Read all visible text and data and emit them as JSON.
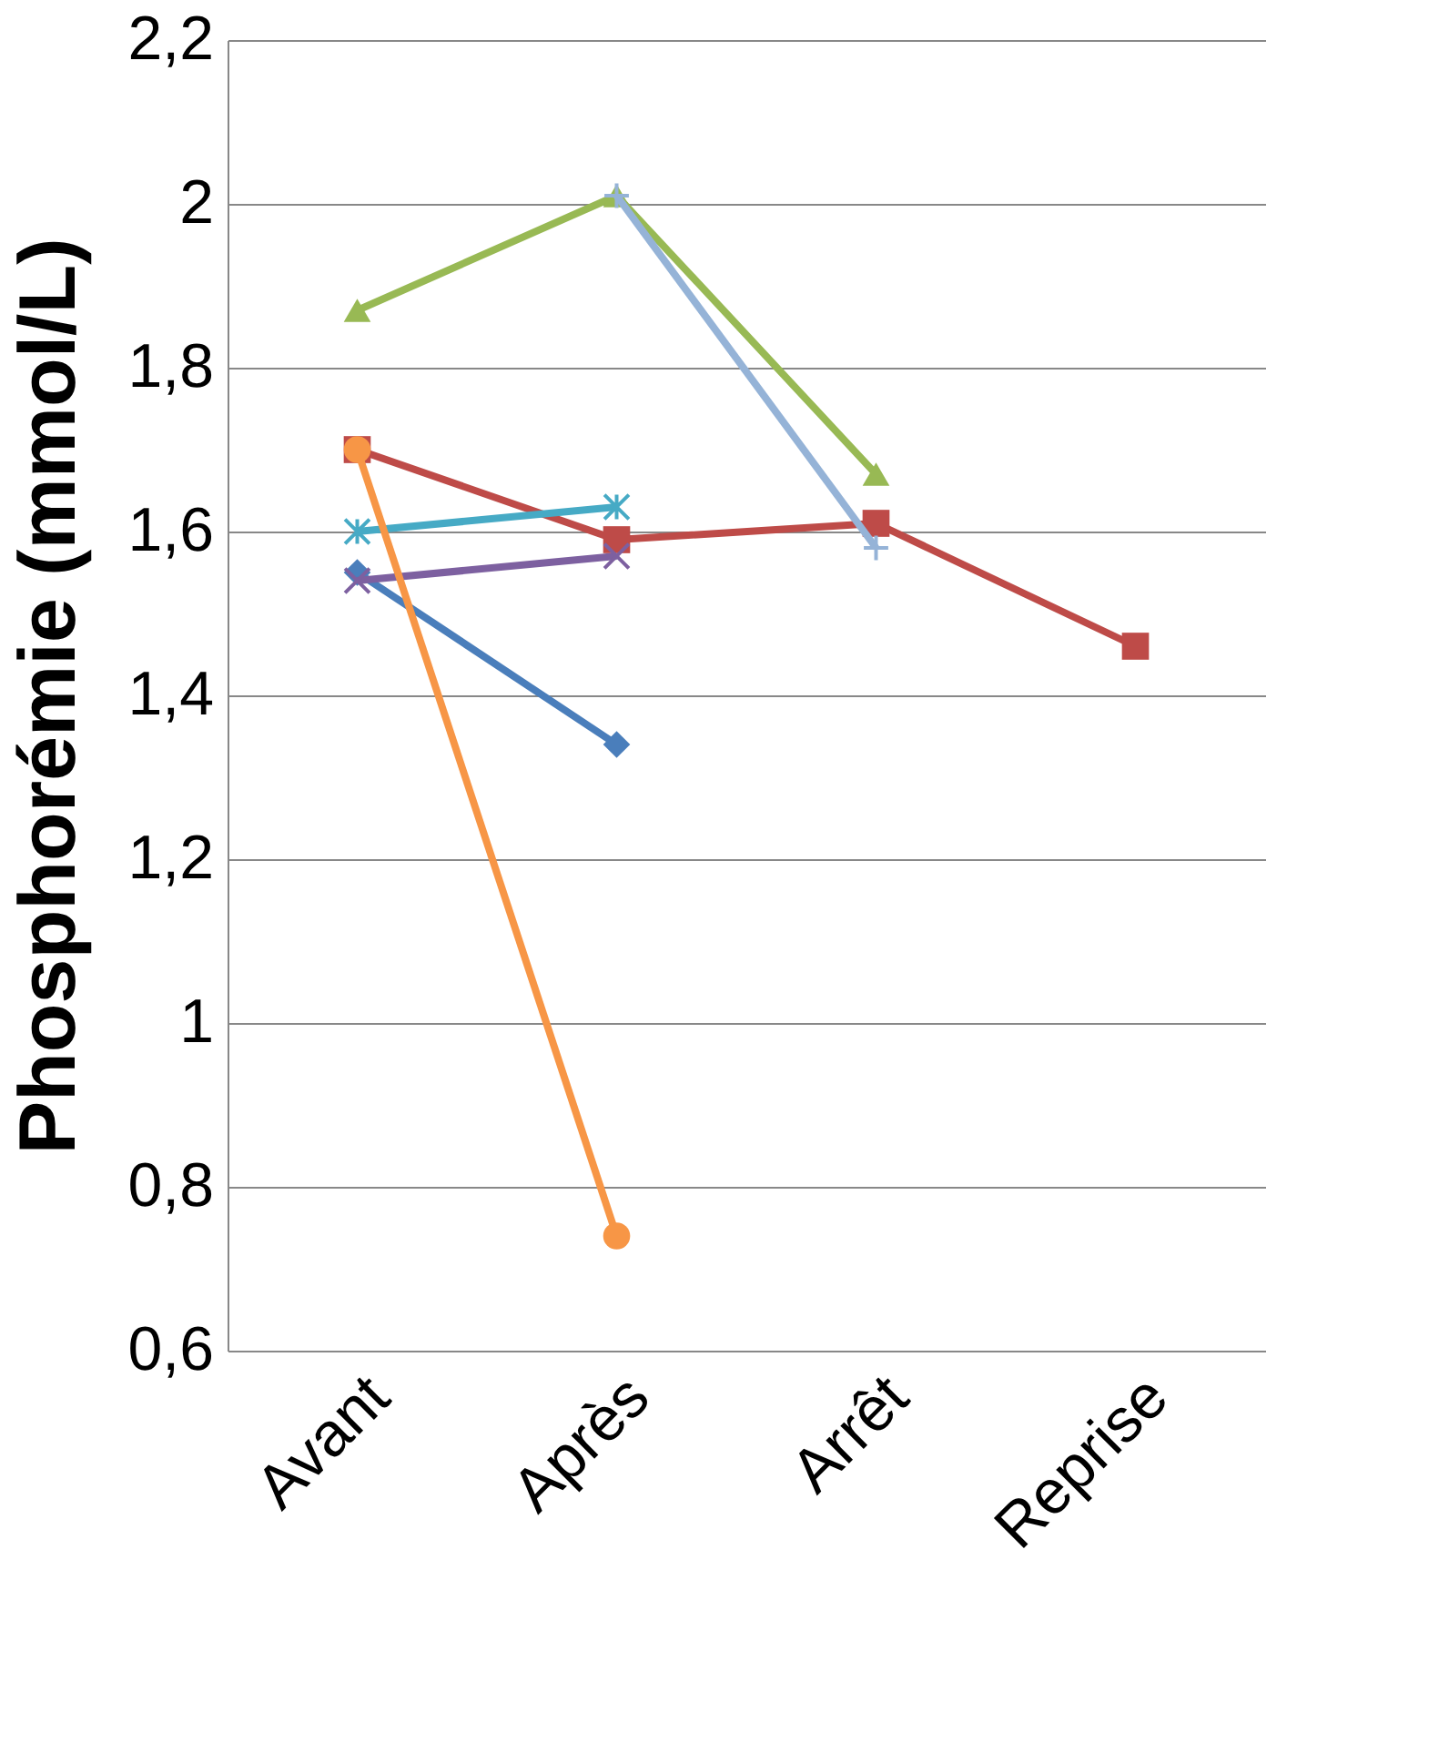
{
  "chart_data": {
    "type": "line",
    "ylabel": "Phosphorémie (mmol/L)",
    "categories": [
      "Avant",
      "Après",
      "Arrêt",
      "Reprise"
    ],
    "series": [
      {
        "color": "#4a7ebb",
        "marker": "diamond",
        "values": [
          1.55,
          1.34,
          null,
          null
        ]
      },
      {
        "color": "#be4b48",
        "marker": "square",
        "values": [
          1.7,
          1.59,
          1.61,
          1.46
        ]
      },
      {
        "color": "#98b954",
        "marker": "triangle",
        "values": [
          1.87,
          2.01,
          1.67,
          null
        ]
      },
      {
        "color": "#7d60a0",
        "marker": "x",
        "values": [
          1.54,
          1.57,
          null,
          null
        ]
      },
      {
        "color": "#46aac5",
        "marker": "cross",
        "values": [
          1.6,
          1.63,
          null,
          null
        ]
      },
      {
        "color": "#f79646",
        "marker": "circle",
        "values": [
          1.7,
          0.74,
          null,
          null
        ]
      },
      {
        "color": "#95b3d7",
        "marker": "plus",
        "values": [
          null,
          2.01,
          1.58,
          null
        ]
      }
    ],
    "ylim": [
      0.6,
      2.2
    ],
    "yticks": [
      {
        "value": 0.6,
        "label": "0,6"
      },
      {
        "value": 0.8,
        "label": "0,8"
      },
      1,
      {
        "value": 1.2,
        "label": "1,2"
      },
      {
        "value": 1.4,
        "label": "1,4"
      },
      {
        "value": 1.6,
        "label": "1,6"
      },
      {
        "value": 1.8,
        "label": "1,8"
      },
      2,
      {
        "value": 2.2,
        "label": "2,2"
      }
    ],
    "grid": "y",
    "line_style": "solid"
  }
}
